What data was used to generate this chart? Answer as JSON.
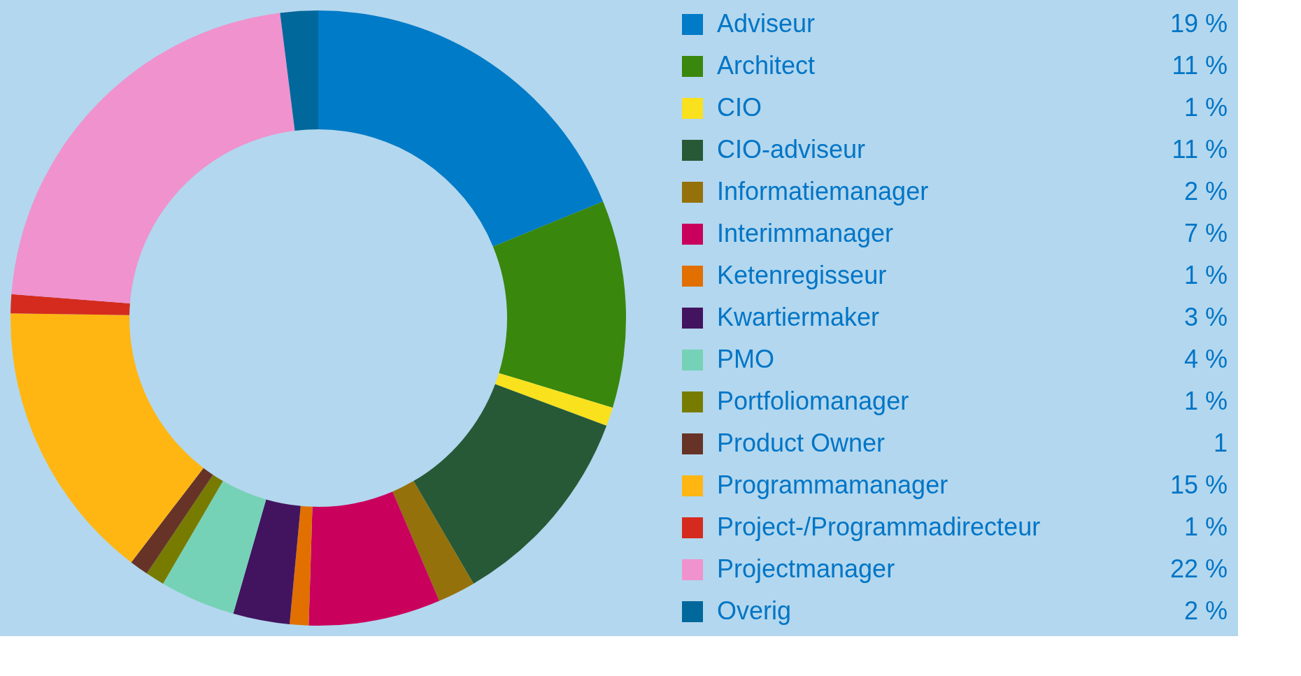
{
  "chart_data": {
    "type": "donut",
    "legend": "right",
    "categories": [
      "Adviseur",
      "Architect",
      "CIO",
      "CIO-adviseur",
      "Informatiemanager",
      "Interimmanager",
      "Ketenregisseur",
      "Kwartiermaker",
      "PMO",
      "Portfoliomanager",
      "Product Owner",
      "Programmamanager",
      "Project-/Programmadirecteur",
      "Projectmanager",
      "Overig"
    ],
    "values": [
      19,
      11,
      1,
      11,
      2,
      7,
      1,
      3,
      4,
      1,
      1,
      15,
      1,
      22,
      2
    ],
    "value_labels": [
      "19 %",
      "11 %",
      "1 %",
      "11 %",
      "2 %",
      "7 %",
      "1 %",
      "3 %",
      "4 %",
      "1 %",
      "1",
      "15 %",
      "1 %",
      "22 %",
      "2 %"
    ],
    "colors": [
      "#007bc7",
      "#39870c",
      "#f9e11e",
      "#275937",
      "#94710a",
      "#ca005d",
      "#e17000",
      "#42145f",
      "#76d2b6",
      "#777c00",
      "#673327",
      "#ffb612",
      "#d52b1e",
      "#f092cd",
      "#01689b"
    ]
  }
}
